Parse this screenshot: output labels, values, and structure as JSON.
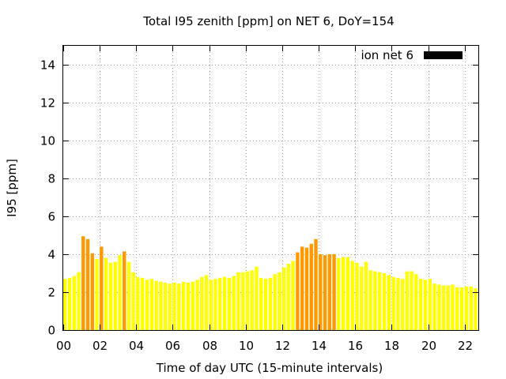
{
  "chart_data": {
    "type": "bar",
    "title": "Total I95 zenith [ppm] on NET 6, DoY=154",
    "xlabel": "Time of day UTC (15-minute intervals)",
    "ylabel": "I95 [ppm]",
    "xlim": [
      0,
      22.75
    ],
    "ylim": [
      0,
      15
    ],
    "xticks": [
      0,
      2,
      4,
      6,
      8,
      10,
      12,
      14,
      16,
      18,
      20,
      22
    ],
    "xtick_labels": [
      "00",
      "02",
      "04",
      "06",
      "08",
      "10",
      "12",
      "14",
      "16",
      "18",
      "20",
      "22"
    ],
    "yticks": [
      0,
      2,
      4,
      6,
      8,
      10,
      12,
      14
    ],
    "ytick_labels": [
      "0",
      "2",
      "4",
      "6",
      "8",
      "10",
      "12",
      "14"
    ],
    "grid": true,
    "legend": {
      "label": "ion net 6",
      "color": "#000000",
      "placement": "top-right"
    },
    "colors": {
      "normal": "#ffff00",
      "elevated": "#ff9900"
    },
    "interval_hours": 0.25,
    "bar_width_hours": 0.19,
    "values": [
      2.7,
      2.75,
      2.85,
      3.05,
      4.95,
      4.8,
      4.05,
      3.75,
      4.4,
      3.8,
      3.55,
      3.6,
      3.95,
      4.15,
      3.6,
      3.05,
      2.8,
      2.75,
      2.65,
      2.7,
      2.6,
      2.55,
      2.5,
      2.45,
      2.5,
      2.45,
      2.55,
      2.5,
      2.55,
      2.65,
      2.8,
      2.9,
      2.65,
      2.7,
      2.75,
      2.8,
      2.75,
      2.85,
      3.05,
      3.05,
      3.1,
      3.15,
      3.35,
      2.75,
      2.7,
      2.75,
      2.95,
      3.05,
      3.3,
      3.5,
      3.65,
      4.1,
      4.4,
      4.35,
      4.55,
      4.8,
      4.0,
      3.95,
      4.0,
      4.0,
      3.8,
      3.85,
      3.85,
      3.65,
      3.55,
      3.35,
      3.6,
      3.15,
      3.1,
      3.05,
      3.0,
      2.9,
      2.8,
      2.75,
      2.7,
      3.1,
      3.1,
      2.95,
      2.7,
      2.65,
      2.7,
      2.45,
      2.4,
      2.35,
      2.35,
      2.4,
      2.25,
      2.25,
      2.3,
      2.3,
      2.2
    ],
    "elevated": [
      false,
      false,
      false,
      false,
      true,
      true,
      true,
      false,
      true,
      false,
      false,
      false,
      false,
      true,
      false,
      false,
      false,
      false,
      false,
      false,
      false,
      false,
      false,
      false,
      false,
      false,
      false,
      false,
      false,
      false,
      false,
      false,
      false,
      false,
      false,
      false,
      false,
      false,
      false,
      false,
      false,
      false,
      false,
      false,
      false,
      false,
      false,
      false,
      false,
      false,
      false,
      true,
      true,
      true,
      true,
      true,
      true,
      true,
      true,
      true,
      false,
      false,
      false,
      false,
      false,
      false,
      false,
      false,
      false,
      false,
      false,
      false,
      false,
      false,
      false,
      false,
      false,
      false,
      false,
      false,
      false,
      false,
      false,
      false,
      false,
      false,
      false,
      false,
      false,
      false,
      false
    ]
  }
}
